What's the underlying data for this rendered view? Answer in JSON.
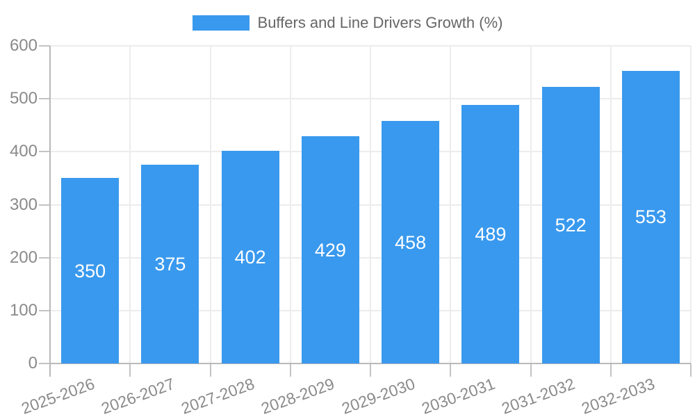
{
  "chart_data": {
    "type": "bar",
    "title": "",
    "legend_label": "Buffers and Line Drivers Growth (%)",
    "legend_position": "top center",
    "categories": [
      "2025-2026",
      "2026-2027",
      "2027-2028",
      "2028-2029",
      "2029-2030",
      "2030-2031",
      "2031-2032",
      "2032-2033"
    ],
    "values": [
      350,
      375,
      402,
      429,
      458,
      489,
      522,
      553
    ],
    "value_labels_shown": true,
    "value_label_position": "centered inside bar",
    "xlabel": "",
    "ylabel": "",
    "ylim": [
      0,
      600
    ],
    "yticks": [
      0,
      100,
      200,
      300,
      400,
      500,
      600
    ],
    "grid": true,
    "x_tick_label_rotation_deg": -20
  },
  "colors": {
    "bar": "#3999ee",
    "grid": "#ececec",
    "axis": "#b9b9b9",
    "tick": "#c3c3c3",
    "axis_label_text": "#8a8a8a",
    "value_label_text": "#ffffff",
    "legend_text": "#666666",
    "background": "#ffffff"
  }
}
